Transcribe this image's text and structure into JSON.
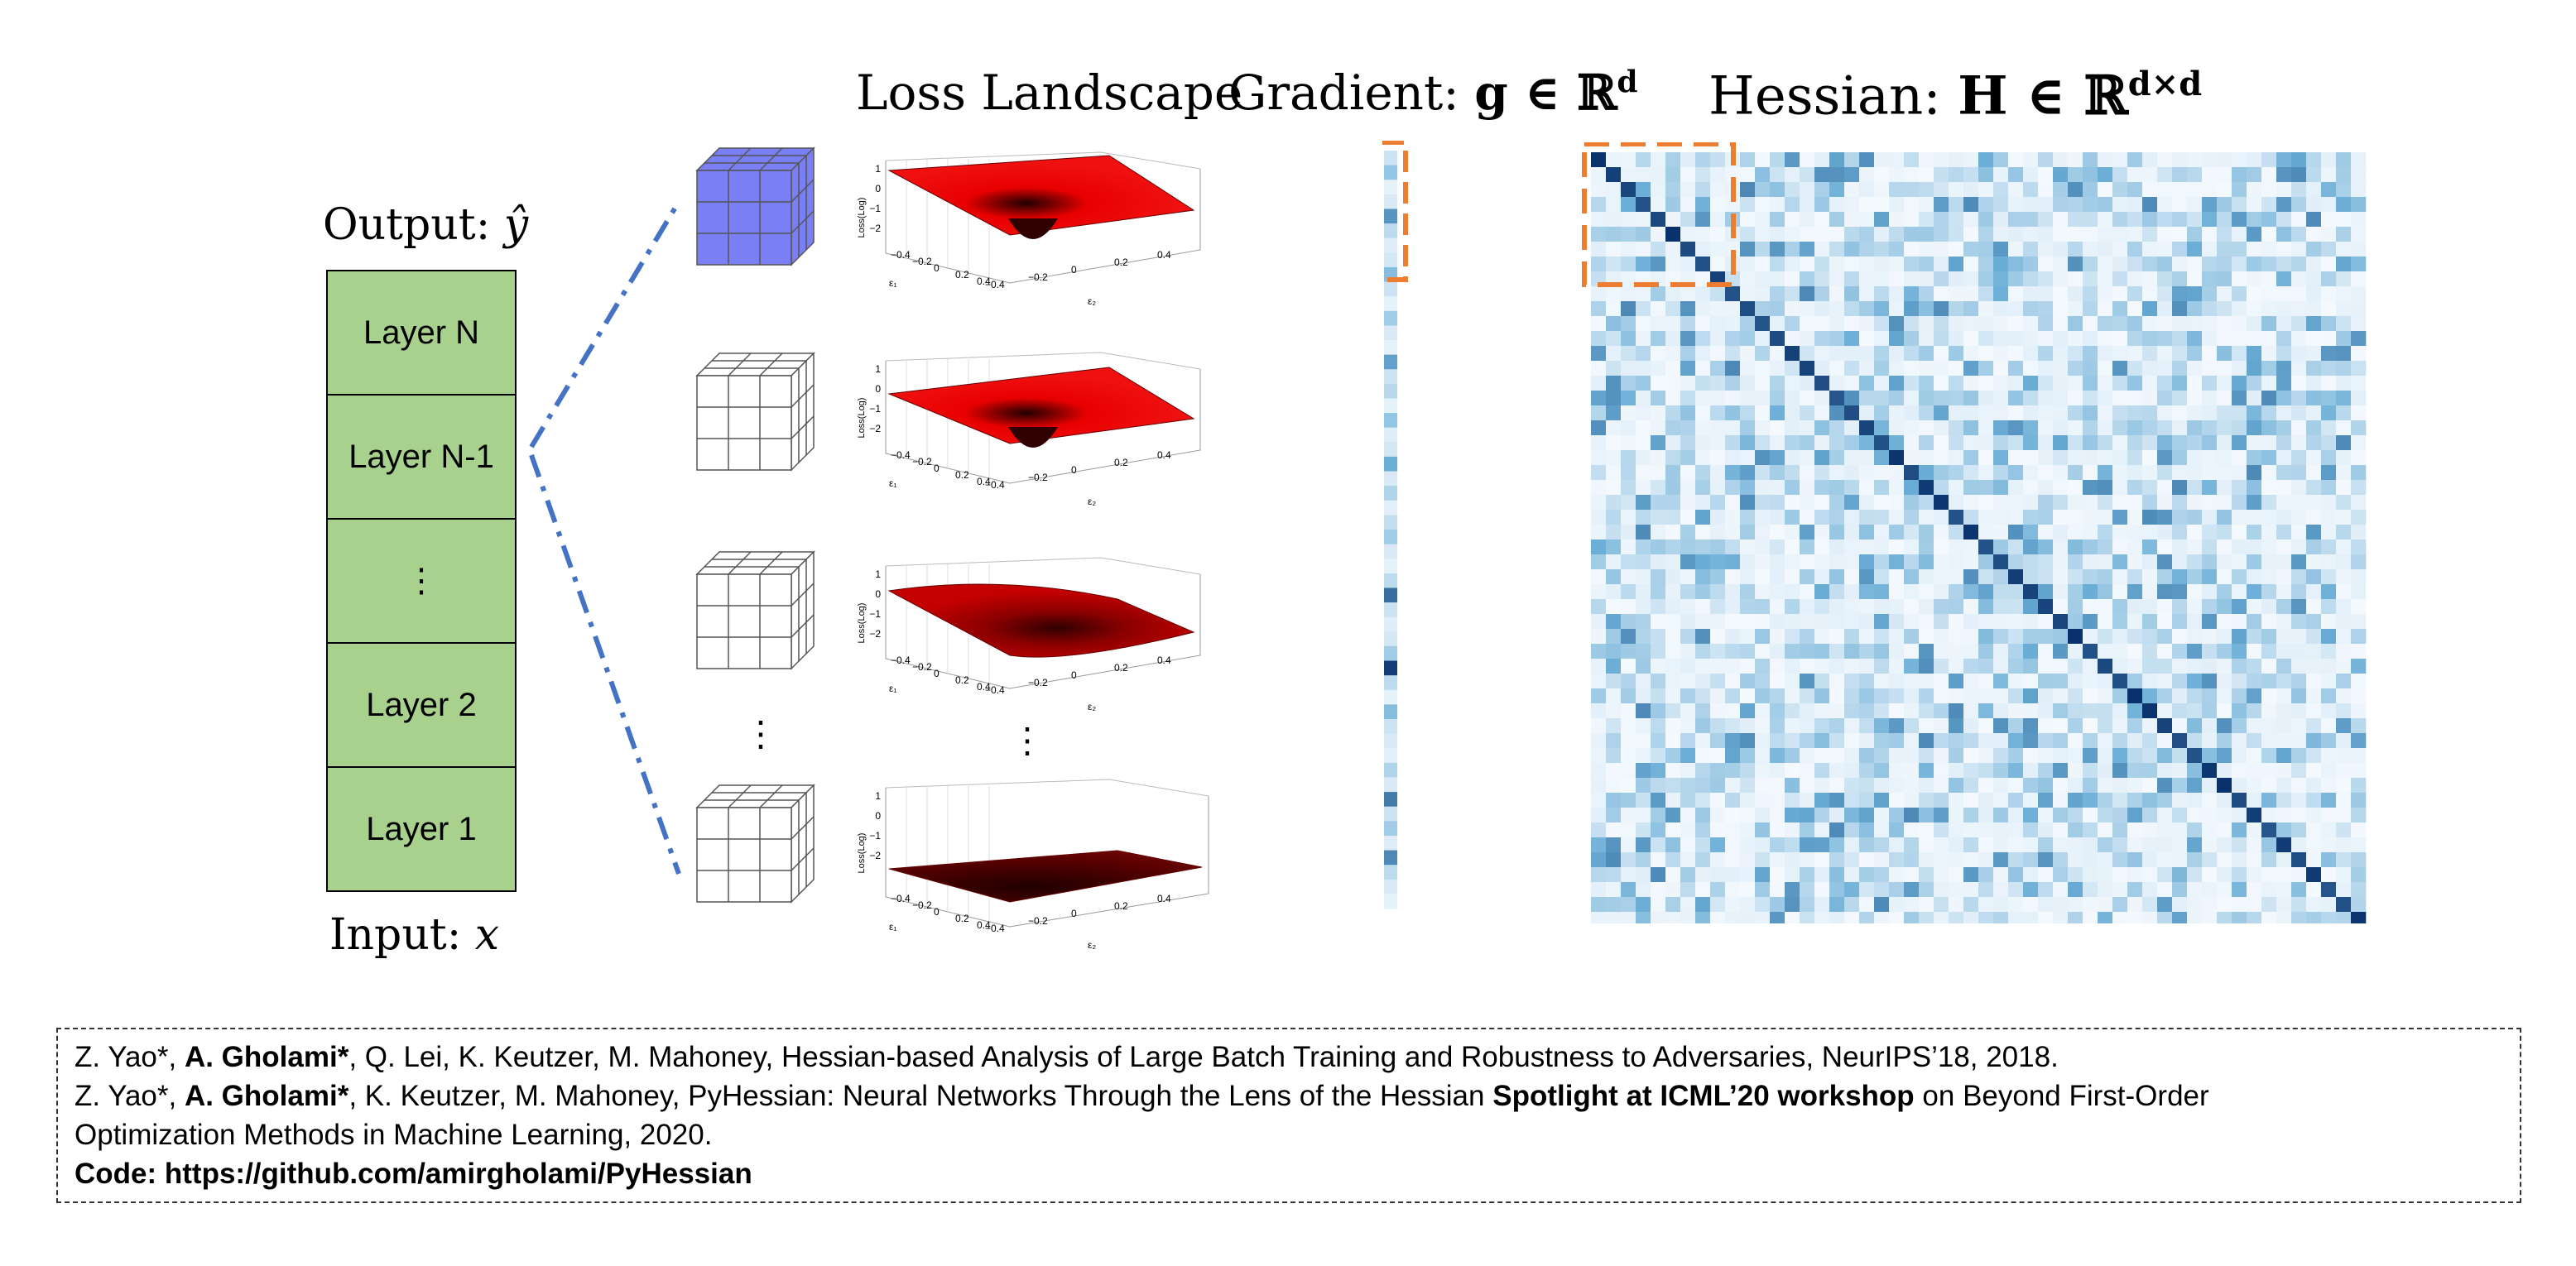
{
  "titles": {
    "loss_landscape": "Loss Landscape",
    "gradient_prefix": "Gradient: ",
    "gradient_symbol": "g ∈ ℝ",
    "gradient_exp": "d",
    "hessian_prefix": "Hessian: ",
    "hessian_symbol": "H ∈ ℝ",
    "hessian_exp": "d×d"
  },
  "network": {
    "output_label": "Output: ",
    "output_var": "ŷ",
    "input_label": "Input: ",
    "input_var": "x",
    "layers": [
      "Layer N",
      "Layer N-1",
      "⋮",
      "Layer 2",
      "Layer 1"
    ]
  },
  "ellipsis": "⋮",
  "plot_axes": {
    "zlabel": "Loss(Log)",
    "zticks": [
      "1",
      "0",
      "−1",
      "−2"
    ],
    "e1_ticks": [
      "−0.4",
      "−0.2",
      "0",
      "0.2",
      "0.4"
    ],
    "e2_ticks": [
      "−0.4",
      "−0.2",
      "0",
      "0.2",
      "0.4"
    ],
    "e1_label": "ε₁",
    "e2_label": "ε₂"
  },
  "gradient_values": [
    0.15,
    0.35,
    0.05,
    0.1,
    0.6,
    0.2,
    0.08,
    0.12,
    0.4,
    0.15,
    0.05,
    0.3,
    0.1,
    0.05,
    0.55,
    0.15,
    0.22,
    0.05,
    0.35,
    0.08,
    0.12,
    0.5,
    0.1,
    0.25,
    0.06,
    0.18,
    0.3,
    0.1,
    0.05,
    0.2,
    0.75,
    0.15,
    0.08,
    0.12,
    0.3,
    0.95,
    0.2,
    0.05,
    0.4,
    0.15,
    0.1,
    0.06,
    0.25,
    0.1,
    0.7,
    0.15,
    0.3,
    0.08,
    0.65,
    0.2,
    0.1,
    0.05
  ],
  "colors": {
    "layer_fill": "#a9d18e",
    "accent_cube": "#7b7ff5",
    "dashed_link": "#4472c4",
    "highlight": "#ed7d31",
    "heat_dark": "#08306b",
    "heat_light": "#f4f9fe"
  },
  "references": {
    "line1_a": "Z. Yao*, ",
    "line1_b": "A. Gholami*",
    "line1_c": ", Q. Lei, K. Keutzer, M. Mahoney, Hessian-based Analysis of Large Batch Training and Robustness to Adversaries, NeurIPS’18, 2018.",
    "line2_a": "Z. Yao*, ",
    "line2_b": "A. Gholami*",
    "line2_c": ", K. Keutzer, M. Mahoney, PyHessian: Neural Networks Through the Lens of the Hessian ",
    "line2_d": "Spotlight at ICML’20 workshop",
    "line2_e": " on Beyond First-Order",
    "line3": "Optimization Methods in Machine Learning, 2020.",
    "line4": "Code: https://github.com/amirgholami/PyHessian"
  }
}
